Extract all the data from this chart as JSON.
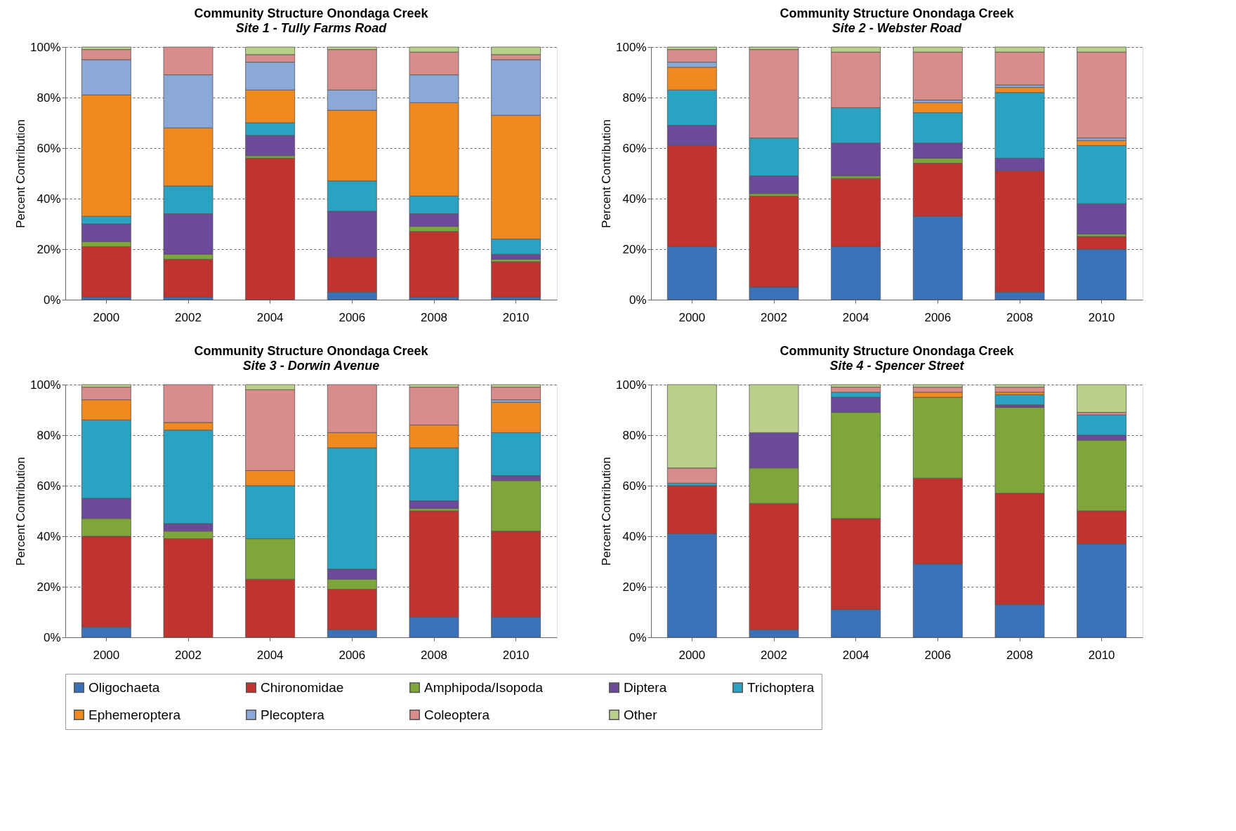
{
  "chart_data": [
    {
      "type": "bar",
      "stacked": true,
      "title": "Community Structure Onondaga Creek",
      "subtitle": "Site 1 - Tully Farms Road",
      "ylabel": "Percent Contribution",
      "categories": [
        "2000",
        "2002",
        "2004",
        "2006",
        "2008",
        "2010"
      ],
      "ylim": [
        0,
        100
      ],
      "yticks": [
        {
          "value": 0,
          "label": "0%"
        },
        {
          "value": 20,
          "label": "20%"
        },
        {
          "value": 40,
          "label": "40%"
        },
        {
          "value": 60,
          "label": "60%"
        },
        {
          "value": 80,
          "label": "80%"
        },
        {
          "value": 100,
          "label": "100%"
        }
      ],
      "grid": "y",
      "legend": "bottom",
      "series": [
        {
          "name": "Oligochaeta",
          "color": "#3a72b8",
          "values": [
            1,
            1,
            0,
            3,
            1,
            1
          ]
        },
        {
          "name": "Chironomidae",
          "color": "#c0332f",
          "values": [
            20,
            15,
            56,
            14,
            26,
            14
          ]
        },
        {
          "name": "Amphipoda/Isopoda",
          "color": "#7fa63a",
          "values": [
            2,
            2,
            1,
            0,
            2,
            1
          ]
        },
        {
          "name": "Diptera",
          "color": "#6b4a9a",
          "values": [
            7,
            16,
            8,
            18,
            5,
            2
          ]
        },
        {
          "name": "Trichoptera",
          "color": "#2aa3c2",
          "values": [
            3,
            11,
            5,
            12,
            7,
            6
          ]
        },
        {
          "name": "Ephemeroptera",
          "color": "#f08a20",
          "values": [
            48,
            23,
            13,
            28,
            37,
            49
          ]
        },
        {
          "name": "Plecoptera",
          "color": "#8aa8d8",
          "values": [
            14,
            21,
            11,
            8,
            11,
            22
          ]
        },
        {
          "name": "Coleoptera",
          "color": "#d98c8c",
          "values": [
            4,
            11,
            3,
            16,
            9,
            2
          ]
        },
        {
          "name": "Other",
          "color": "#b9d08a",
          "values": [
            1,
            0,
            3,
            1,
            2,
            3
          ]
        }
      ]
    },
    {
      "type": "bar",
      "stacked": true,
      "title": "Community Structure Onondaga Creek",
      "subtitle": "Site 2 - Webster Road",
      "ylabel": "Percent Contribution",
      "categories": [
        "2000",
        "2002",
        "2004",
        "2006",
        "2008",
        "2010"
      ],
      "ylim": [
        0,
        100
      ],
      "yticks": [
        {
          "value": 0,
          "label": "0%"
        },
        {
          "value": 20,
          "label": "20%"
        },
        {
          "value": 40,
          "label": "40%"
        },
        {
          "value": 60,
          "label": "60%"
        },
        {
          "value": 80,
          "label": "80%"
        },
        {
          "value": 100,
          "label": "100%"
        }
      ],
      "grid": "y",
      "legend": "bottom",
      "series": [
        {
          "name": "Oligochaeta",
          "color": "#3a72b8",
          "values": [
            21,
            5,
            21,
            33,
            3,
            20
          ]
        },
        {
          "name": "Chironomidae",
          "color": "#c0332f",
          "values": [
            40,
            36,
            27,
            21,
            48,
            5
          ]
        },
        {
          "name": "Amphipoda/Isopoda",
          "color": "#7fa63a",
          "values": [
            0,
            1,
            1,
            2,
            0,
            1
          ]
        },
        {
          "name": "Diptera",
          "color": "#6b4a9a",
          "values": [
            8,
            7,
            13,
            6,
            5,
            12
          ]
        },
        {
          "name": "Trichoptera",
          "color": "#2aa3c2",
          "values": [
            14,
            15,
            14,
            12,
            26,
            23
          ]
        },
        {
          "name": "Ephemeroptera",
          "color": "#f08a20",
          "values": [
            9,
            0,
            0,
            4,
            2,
            2
          ]
        },
        {
          "name": "Plecoptera",
          "color": "#8aa8d8",
          "values": [
            2,
            0,
            0,
            1,
            1,
            1
          ]
        },
        {
          "name": "Coleoptera",
          "color": "#d98c8c",
          "values": [
            5,
            35,
            22,
            19,
            13,
            34
          ]
        },
        {
          "name": "Other",
          "color": "#b9d08a",
          "values": [
            1,
            1,
            2,
            2,
            2,
            2
          ]
        }
      ]
    },
    {
      "type": "bar",
      "stacked": true,
      "title": "Community Structure Onondaga Creek",
      "subtitle": "Site 3 - Dorwin Avenue",
      "ylabel": "Percent Contribution",
      "categories": [
        "2000",
        "2002",
        "2004",
        "2006",
        "2008",
        "2010"
      ],
      "ylim": [
        0,
        100
      ],
      "yticks": [
        {
          "value": 0,
          "label": "0%"
        },
        {
          "value": 20,
          "label": "20%"
        },
        {
          "value": 40,
          "label": "40%"
        },
        {
          "value": 60,
          "label": "60%"
        },
        {
          "value": 80,
          "label": "80%"
        },
        {
          "value": 100,
          "label": "100%"
        }
      ],
      "grid": "y",
      "legend": "bottom",
      "series": [
        {
          "name": "Oligochaeta",
          "color": "#3a72b8",
          "values": [
            4,
            0,
            0,
            3,
            8,
            8
          ]
        },
        {
          "name": "Chironomidae",
          "color": "#c0332f",
          "values": [
            36,
            39,
            23,
            16,
            42,
            34
          ]
        },
        {
          "name": "Amphipoda/Isopoda",
          "color": "#7fa63a",
          "values": [
            7,
            3,
            16,
            4,
            1,
            20
          ]
        },
        {
          "name": "Diptera",
          "color": "#6b4a9a",
          "values": [
            8,
            3,
            0,
            4,
            3,
            2
          ]
        },
        {
          "name": "Trichoptera",
          "color": "#2aa3c2",
          "values": [
            31,
            37,
            21,
            48,
            21,
            17
          ]
        },
        {
          "name": "Ephemeroptera",
          "color": "#f08a20",
          "values": [
            8,
            3,
            6,
            6,
            9,
            12
          ]
        },
        {
          "name": "Plecoptera",
          "color": "#8aa8d8",
          "values": [
            0,
            0,
            0,
            0,
            0,
            1
          ]
        },
        {
          "name": "Coleoptera",
          "color": "#d98c8c",
          "values": [
            5,
            15,
            32,
            19,
            15,
            5
          ]
        },
        {
          "name": "Other",
          "color": "#b9d08a",
          "values": [
            1,
            0,
            2,
            0,
            1,
            1
          ]
        }
      ]
    },
    {
      "type": "bar",
      "stacked": true,
      "title": "Community Structure Onondaga Creek",
      "subtitle": "Site 4 - Spencer Street",
      "ylabel": "Percent Contribution",
      "categories": [
        "2000",
        "2002",
        "2004",
        "2006",
        "2008",
        "2010"
      ],
      "ylim": [
        0,
        100
      ],
      "yticks": [
        {
          "value": 0,
          "label": "0%"
        },
        {
          "value": 20,
          "label": "20%"
        },
        {
          "value": 40,
          "label": "40%"
        },
        {
          "value": 60,
          "label": "60%"
        },
        {
          "value": 80,
          "label": "80%"
        },
        {
          "value": 100,
          "label": "100%"
        }
      ],
      "grid": "y",
      "legend": "bottom",
      "series": [
        {
          "name": "Oligochaeta",
          "color": "#3a72b8",
          "values": [
            41,
            3,
            11,
            29,
            13,
            37
          ]
        },
        {
          "name": "Chironomidae",
          "color": "#c0332f",
          "values": [
            19,
            50,
            36,
            34,
            44,
            13
          ]
        },
        {
          "name": "Amphipoda/Isopoda",
          "color": "#7fa63a",
          "values": [
            0,
            14,
            42,
            32,
            34,
            28
          ]
        },
        {
          "name": "Diptera",
          "color": "#6b4a9a",
          "values": [
            0,
            14,
            6,
            0,
            1,
            2
          ]
        },
        {
          "name": "Trichoptera",
          "color": "#2aa3c2",
          "values": [
            1,
            0,
            2,
            0,
            4,
            8
          ]
        },
        {
          "name": "Ephemeroptera",
          "color": "#f08a20",
          "values": [
            0,
            0,
            0,
            2,
            1,
            0
          ]
        },
        {
          "name": "Plecoptera",
          "color": "#8aa8d8",
          "values": [
            0,
            0,
            0,
            0,
            0,
            0
          ]
        },
        {
          "name": "Coleoptera",
          "color": "#d98c8c",
          "values": [
            6,
            0,
            2,
            2,
            2,
            1
          ]
        },
        {
          "name": "Other",
          "color": "#b9d08a",
          "values": [
            33,
            19,
            1,
            1,
            1,
            11
          ]
        }
      ]
    }
  ]
}
